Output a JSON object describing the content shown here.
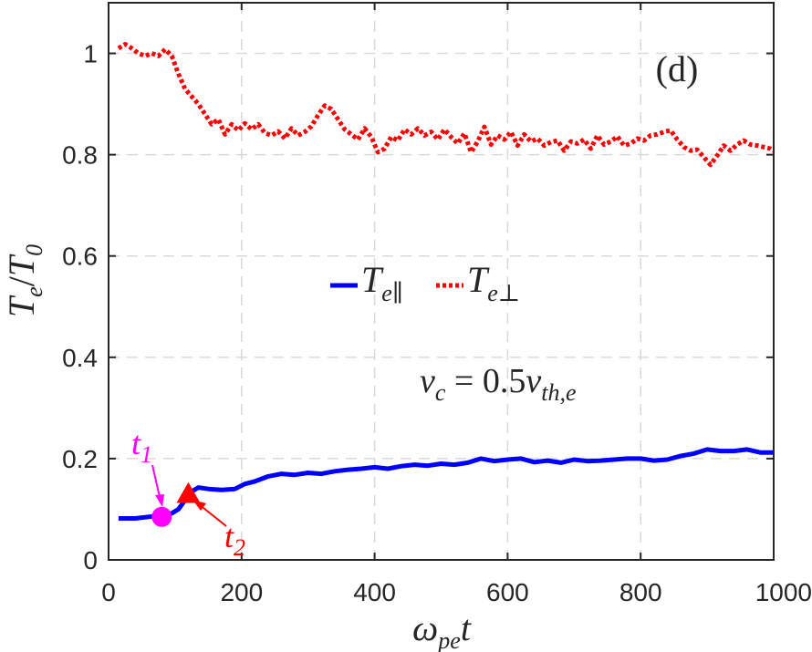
{
  "chart_data": {
    "type": "line",
    "panel_label": "(d)",
    "xlabel": "ω_pe t",
    "ylabel": "T_e / T_0",
    "xlim": [
      0,
      1000
    ],
    "ylim": [
      0,
      1.1
    ],
    "xticks": [
      0,
      200,
      400,
      600,
      800,
      1000
    ],
    "yticks": [
      0,
      0.2,
      0.4,
      0.6,
      0.8,
      1
    ],
    "xtick_labels": [
      "0",
      "200",
      "400",
      "600",
      "800",
      "1000"
    ],
    "ytick_labels": [
      "0",
      "0.2",
      "0.4",
      "0.6",
      "0.8",
      "1"
    ],
    "grid": true,
    "legend": {
      "placement": "center",
      "entries": [
        "T_e∥",
        "T_e⊥"
      ]
    },
    "annotations": {
      "condition": "v_c = 0.5 v_th,e",
      "markers": [
        {
          "label": "t_1",
          "x": 80,
          "y": 0.085,
          "shape": "circle",
          "color": "#ff00ff"
        },
        {
          "label": "t_2",
          "x": 120,
          "y": 0.13,
          "shape": "triangle",
          "color": "#ff0000"
        }
      ]
    },
    "series": [
      {
        "name": "T_e∥",
        "color": "#0000ff",
        "style": "solid",
        "x": [
          15,
          40,
          60,
          80,
          95,
          105,
          115,
          125,
          135,
          150,
          170,
          190,
          205,
          220,
          240,
          260,
          280,
          300,
          320,
          340,
          360,
          380,
          400,
          420,
          440,
          460,
          480,
          500,
          520,
          540,
          560,
          580,
          600,
          620,
          640,
          660,
          680,
          700,
          720,
          740,
          760,
          780,
          800,
          820,
          840,
          860,
          880,
          900,
          920,
          940,
          960,
          980,
          1000
        ],
        "values": [
          0.082,
          0.082,
          0.085,
          0.088,
          0.092,
          0.1,
          0.118,
          0.135,
          0.143,
          0.14,
          0.138,
          0.14,
          0.15,
          0.155,
          0.165,
          0.17,
          0.168,
          0.172,
          0.17,
          0.175,
          0.178,
          0.18,
          0.183,
          0.18,
          0.185,
          0.188,
          0.186,
          0.19,
          0.188,
          0.192,
          0.2,
          0.195,
          0.198,
          0.2,
          0.193,
          0.196,
          0.192,
          0.198,
          0.195,
          0.196,
          0.198,
          0.2,
          0.2,
          0.196,
          0.198,
          0.205,
          0.21,
          0.218,
          0.215,
          0.215,
          0.218,
          0.212,
          0.212
        ]
      },
      {
        "name": "T_e⊥",
        "color": "#ff0000",
        "style": "dotted",
        "x": [
          15,
          25,
          35,
          45,
          55,
          65,
          75,
          85,
          95,
          105,
          115,
          125,
          135,
          145,
          155,
          165,
          175,
          185,
          195,
          205,
          215,
          225,
          235,
          245,
          255,
          265,
          275,
          285,
          295,
          305,
          315,
          325,
          335,
          345,
          355,
          365,
          375,
          385,
          395,
          405,
          415,
          425,
          435,
          445,
          455,
          465,
          475,
          485,
          495,
          505,
          515,
          525,
          535,
          545,
          555,
          565,
          575,
          585,
          595,
          605,
          615,
          625,
          635,
          645,
          655,
          665,
          675,
          685,
          695,
          705,
          715,
          725,
          735,
          745,
          755,
          765,
          775,
          785,
          795,
          805,
          815,
          825,
          835,
          845,
          855,
          865,
          875,
          885,
          895,
          905,
          915,
          925,
          935,
          945,
          955,
          965,
          975,
          985,
          995,
          1000
        ],
        "values": [
          1.01,
          1.018,
          1.01,
          1.0,
          0.995,
          1.0,
          0.995,
          1.008,
          0.995,
          0.96,
          0.93,
          0.915,
          0.9,
          0.88,
          0.86,
          0.87,
          0.84,
          0.86,
          0.848,
          0.862,
          0.85,
          0.86,
          0.843,
          0.838,
          0.846,
          0.832,
          0.852,
          0.838,
          0.845,
          0.856,
          0.878,
          0.897,
          0.89,
          0.87,
          0.85,
          0.84,
          0.83,
          0.852,
          0.835,
          0.805,
          0.812,
          0.835,
          0.828,
          0.85,
          0.84,
          0.852,
          0.838,
          0.845,
          0.83,
          0.85,
          0.835,
          0.822,
          0.842,
          0.805,
          0.826,
          0.855,
          0.82,
          0.838,
          0.83,
          0.845,
          0.818,
          0.84,
          0.826,
          0.832,
          0.818,
          0.825,
          0.828,
          0.808,
          0.826,
          0.822,
          0.83,
          0.812,
          0.838,
          0.82,
          0.826,
          0.836,
          0.818,
          0.822,
          0.832,
          0.828,
          0.838,
          0.84,
          0.845,
          0.848,
          0.83,
          0.815,
          0.808,
          0.81,
          0.795,
          0.78,
          0.798,
          0.818,
          0.808,
          0.82,
          0.828,
          0.82,
          0.818,
          0.815,
          0.812,
          0.808
        ]
      }
    ]
  }
}
